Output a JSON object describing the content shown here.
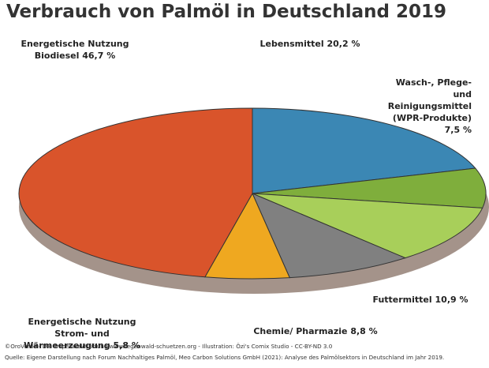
{
  "chart_data": {
    "type": "pie",
    "title": "Verbrauch von Palmöl in Deutschland 2019",
    "categories": [
      "Lebensmittel",
      "Wasch-, Pflege- und Reinigungsmittel (WPR-Produkte)",
      "Futtermittel",
      "Chemie/ Pharmazie",
      "Energetische Nutzung Strom- und Wärmeerzeugung",
      "Energetische Nutzung Biodiesel"
    ],
    "values": [
      20.2,
      7.5,
      10.9,
      8.8,
      5.8,
      46.7
    ],
    "value_labels": [
      "20,2 %",
      "7,5 %",
      "10,9 %",
      "8,8 %",
      "5,8 %",
      "46,7 %"
    ],
    "colors": [
      "#3b87b4",
      "#7fae3c",
      "#a8cf5a",
      "#808080",
      "#efa820",
      "#d9542b"
    ],
    "credits": "©OroVerde - Die Tropenwaldstiftung www.regenwald-schuetzen.org - Illustration: Özi's Comix Studio - CC-BY-ND 3.0",
    "source": "Quelle: Eigene Darstellung nach Forum Nachhaltiges Palmöl, Meo Carbon Solutions GmbH (2021): Analyse des Palmölsektors in Deutschland im Jahr 2019."
  }
}
